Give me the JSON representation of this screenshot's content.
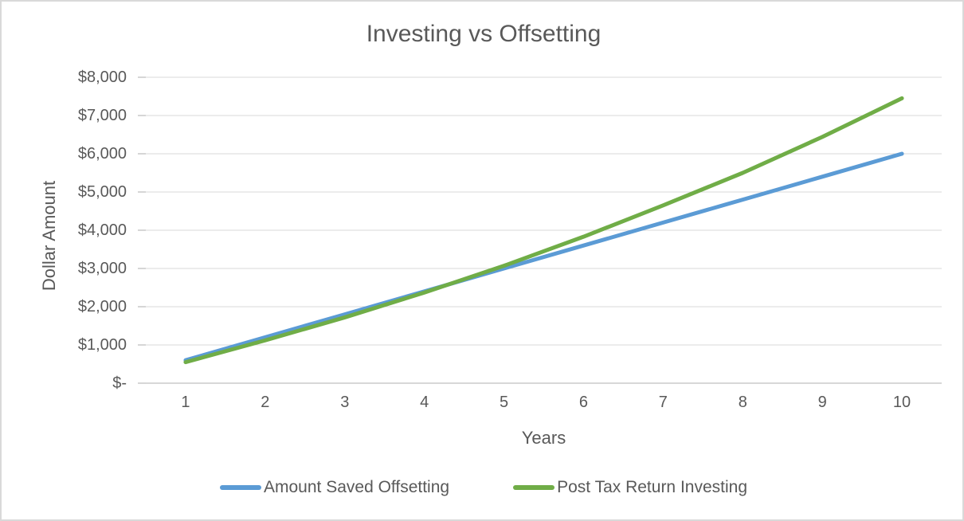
{
  "window": {
    "background": "#FFFFFF",
    "border_color": "#D9D9D9"
  },
  "chart_data": {
    "type": "line",
    "title": "Investing vs Offsetting",
    "xlabel": "Years",
    "ylabel": "Dollar Amount",
    "x": [
      1,
      2,
      3,
      4,
      5,
      6,
      7,
      8,
      9,
      10
    ],
    "series": [
      {
        "name": "Amount Saved Offsetting",
        "color": "#5B9BD5",
        "values": [
          600,
          1200,
          1800,
          2400,
          3000,
          3600,
          4200,
          4800,
          5400,
          6000
        ]
      },
      {
        "name": "Post Tax Return Investing",
        "color": "#70AD47",
        "values": [
          550,
          1120,
          1720,
          2370,
          3070,
          3830,
          4650,
          5500,
          6440,
          7450
        ]
      }
    ],
    "ylim": [
      0,
      8000
    ],
    "ytick_interval": 1000,
    "ytick_labels": [
      "$-",
      "$1,000",
      "$2,000",
      "$3,000",
      "$4,000",
      "$5,000",
      "$6,000",
      "$7,000",
      "$8,000"
    ],
    "grid": "horizontal",
    "grid_color": "#D9D9D9",
    "axis_color": "#BFBFBF",
    "text_color": "#595959",
    "legend_position": "bottom",
    "line_width": 5
  }
}
